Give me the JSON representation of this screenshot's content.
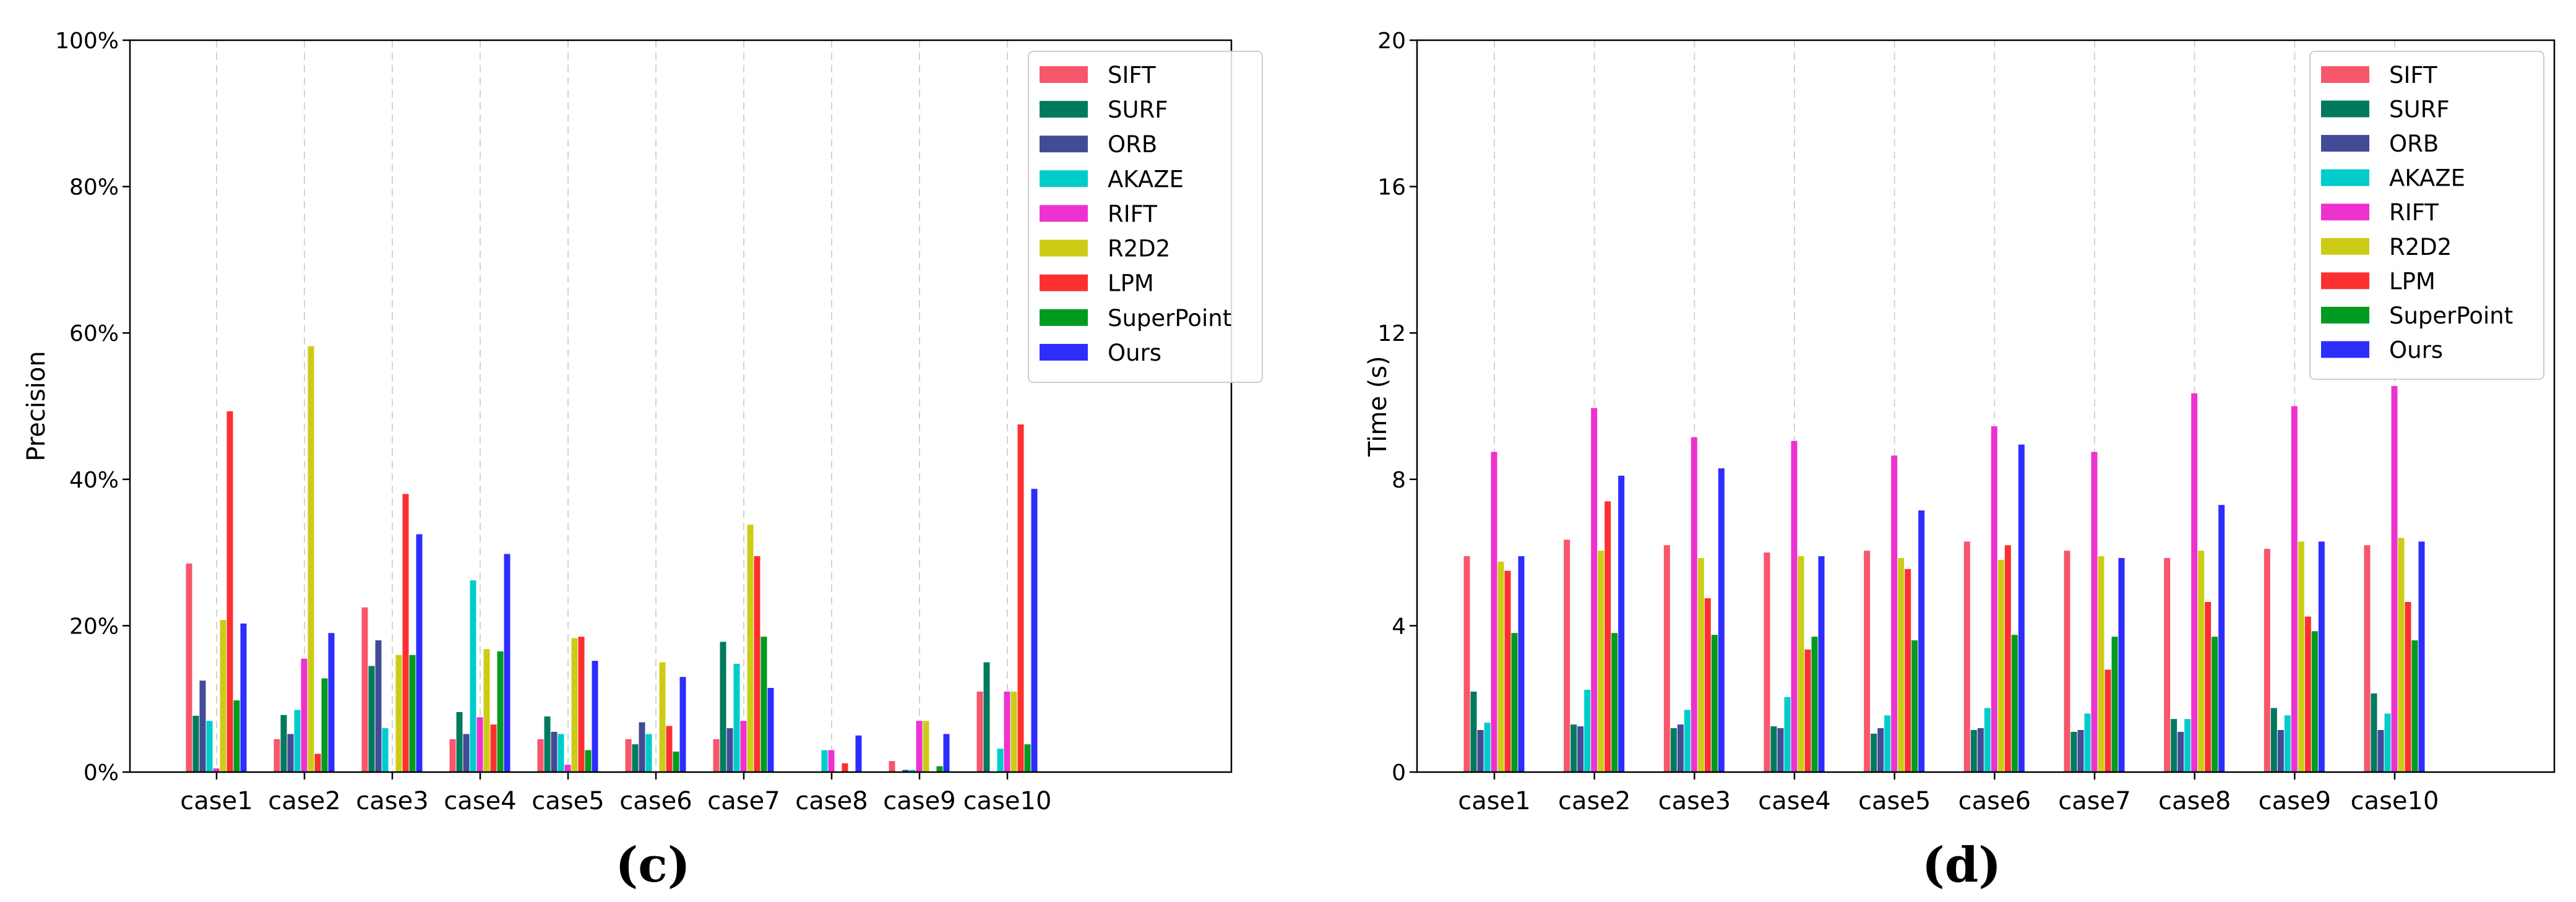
{
  "series_colors": [
    "#f7566b",
    "#007a5e",
    "#414b96",
    "#00cccc",
    "#ed32d0",
    "#cccc17",
    "#fc3030",
    "#009b20",
    "#2d2dfc"
  ],
  "chart_data": [
    {
      "type": "bar",
      "panel_label": "(c)",
      "title": "",
      "xlabel": "",
      "ylabel": "Precision",
      "ylim": [
        0,
        100
      ],
      "yticks": [
        0,
        20,
        40,
        60,
        80,
        100
      ],
      "ytick_labels": [
        "0%",
        "20%",
        "40%",
        "60%",
        "80%",
        "100%"
      ],
      "grid": "vertical dashed",
      "legend_position": "top-right",
      "categories": [
        "case1",
        "case2",
        "case3",
        "case4",
        "case5",
        "case6",
        "case7",
        "case8",
        "case9",
        "case10"
      ],
      "series": [
        {
          "name": "SIFT",
          "values": [
            28.5,
            4.5,
            22.5,
            4.5,
            4.5,
            4.5,
            4.5,
            0,
            1.5,
            11
          ]
        },
        {
          "name": "SURF",
          "values": [
            7.7,
            7.8,
            14.5,
            8.2,
            7.6,
            3.8,
            17.8,
            0,
            0,
            15
          ]
        },
        {
          "name": "ORB",
          "values": [
            12.5,
            5.2,
            18,
            5.2,
            5.5,
            6.8,
            6,
            0,
            0.3,
            0
          ]
        },
        {
          "name": "AKAZE",
          "values": [
            7,
            8.5,
            6,
            26.2,
            5.2,
            5.2,
            14.8,
            3,
            0.3,
            3.2
          ]
        },
        {
          "name": "RIFT",
          "values": [
            0.5,
            15.5,
            0,
            7.5,
            1,
            0,
            7,
            3,
            7,
            11
          ]
        },
        {
          "name": "R2D2",
          "values": [
            20.8,
            58.2,
            16,
            16.8,
            18.3,
            15,
            33.8,
            0,
            7,
            11
          ]
        },
        {
          "name": "LPM",
          "values": [
            49.3,
            2.5,
            38,
            6.5,
            18.5,
            6.3,
            29.5,
            1.2,
            0,
            47.5
          ]
        },
        {
          "name": "SuperPoint",
          "values": [
            9.8,
            12.8,
            16,
            16.5,
            3,
            2.8,
            18.5,
            0,
            0.8,
            3.8
          ]
        },
        {
          "name": "Ours",
          "values": [
            20.3,
            19,
            32.5,
            29.8,
            15.2,
            13,
            11.5,
            5,
            5.2,
            38.7
          ]
        }
      ]
    },
    {
      "type": "bar",
      "panel_label": "(d)",
      "title": "",
      "xlabel": "",
      "ylabel": "Time (s)",
      "ylim": [
        0,
        20
      ],
      "yticks": [
        0,
        4,
        8,
        12,
        16,
        20
      ],
      "ytick_labels": [
        "0",
        "4",
        "8",
        "12",
        "16",
        "20"
      ],
      "grid": "vertical dashed",
      "legend_position": "top-right",
      "categories": [
        "case1",
        "case2",
        "case3",
        "case4",
        "case5",
        "case6",
        "case7",
        "case8",
        "case9",
        "case10"
      ],
      "series": [
        {
          "name": "SIFT",
          "values": [
            5.9,
            6.35,
            6.2,
            6,
            6.05,
            6.3,
            6.05,
            5.85,
            6.1,
            6.2
          ]
        },
        {
          "name": "SURF",
          "values": [
            2.2,
            1.3,
            1.2,
            1.25,
            1.05,
            1.15,
            1.1,
            1.45,
            1.75,
            2.15
          ]
        },
        {
          "name": "ORB",
          "values": [
            1.15,
            1.25,
            1.3,
            1.2,
            1.2,
            1.2,
            1.15,
            1.1,
            1.15,
            1.15
          ]
        },
        {
          "name": "AKAZE",
          "values": [
            1.35,
            2.25,
            1.7,
            2.05,
            1.55,
            1.75,
            1.6,
            1.45,
            1.55,
            1.6
          ]
        },
        {
          "name": "RIFT",
          "values": [
            8.75,
            9.95,
            9.15,
            9.05,
            8.65,
            9.45,
            8.75,
            10.35,
            10,
            10.55
          ]
        },
        {
          "name": "R2D2",
          "values": [
            5.75,
            6.05,
            5.85,
            5.9,
            5.85,
            5.8,
            5.9,
            6.05,
            6.3,
            6.4
          ]
        },
        {
          "name": "LPM",
          "values": [
            5.5,
            7.4,
            4.75,
            3.35,
            5.55,
            6.2,
            2.8,
            4.65,
            4.25,
            4.65
          ]
        },
        {
          "name": "SuperPoint",
          "values": [
            3.8,
            3.8,
            3.75,
            3.7,
            3.6,
            3.75,
            3.7,
            3.7,
            3.85,
            3.6
          ]
        },
        {
          "name": "Ours",
          "values": [
            5.9,
            8.1,
            8.3,
            5.9,
            7.15,
            8.95,
            5.85,
            7.3,
            6.3,
            6.3
          ]
        }
      ]
    }
  ]
}
